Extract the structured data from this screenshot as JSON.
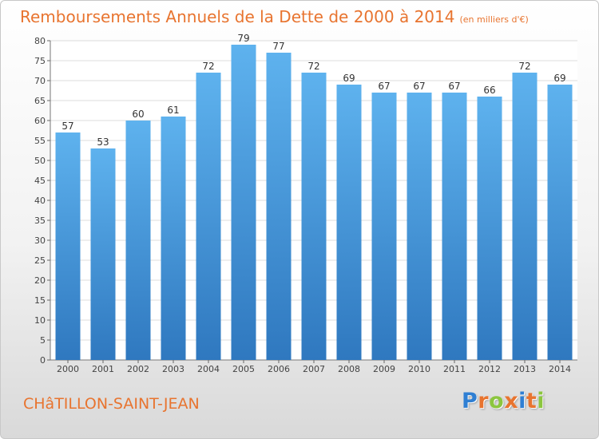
{
  "chart_data": {
    "type": "bar",
    "title": "Remboursements Annuels de la Dette de 2000 à 2014",
    "subtitle": "(en milliers d'€)",
    "categories": [
      "2000",
      "2001",
      "2002",
      "2003",
      "2004",
      "2005",
      "2006",
      "2007",
      "2008",
      "2009",
      "2010",
      "2011",
      "2012",
      "2013",
      "2014"
    ],
    "values": [
      57,
      53,
      60,
      61,
      72,
      79,
      77,
      72,
      69,
      67,
      67,
      67,
      66,
      72,
      69
    ],
    "ylim": [
      0,
      80
    ],
    "yticks": [
      0,
      5,
      10,
      15,
      20,
      25,
      30,
      35,
      40,
      45,
      50,
      55,
      60,
      65,
      70,
      75,
      80
    ],
    "xlabel": "",
    "ylabel": "",
    "grid": "horizontal",
    "bar_color": "#4a9de0"
  },
  "footer": {
    "commune": "CHâTILLON-SAINT-JEAN",
    "logo_text": "Proxiti",
    "logo_colors": [
      "#2f7fd3",
      "#e8742f",
      "#8cc63f",
      "#e8742f",
      "#2f7fd3",
      "#e8742f",
      "#8cc63f"
    ]
  },
  "colors": {
    "title": "#e8742f"
  }
}
